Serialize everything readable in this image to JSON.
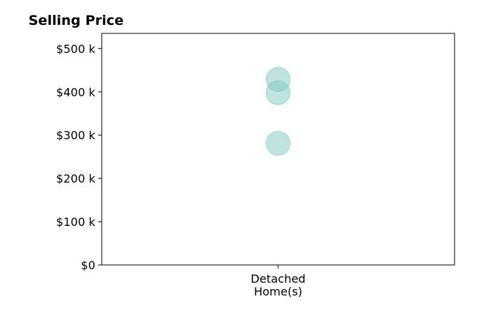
{
  "chart_data": {
    "type": "scatter",
    "title": "Selling Price",
    "xlabel": "",
    "ylabel": "",
    "categories": [
      "Detached\nHome(s)"
    ],
    "series": [
      {
        "category": "Detached\nHome(s)",
        "values": [
          429000,
          398000,
          281000
        ]
      }
    ],
    "ylim": [
      0,
      535000
    ],
    "yticks": [
      0,
      100000,
      200000,
      300000,
      400000,
      500000
    ],
    "ytick_labels": [
      "$0",
      "$100 k",
      "$200 k",
      "$300 k",
      "$400 k",
      "$500 k"
    ],
    "grid": false,
    "legend": "none",
    "colors": {
      "marker_fill": "#80c8c0",
      "marker_stroke": "#80c8c0",
      "axis": "#000000"
    }
  }
}
